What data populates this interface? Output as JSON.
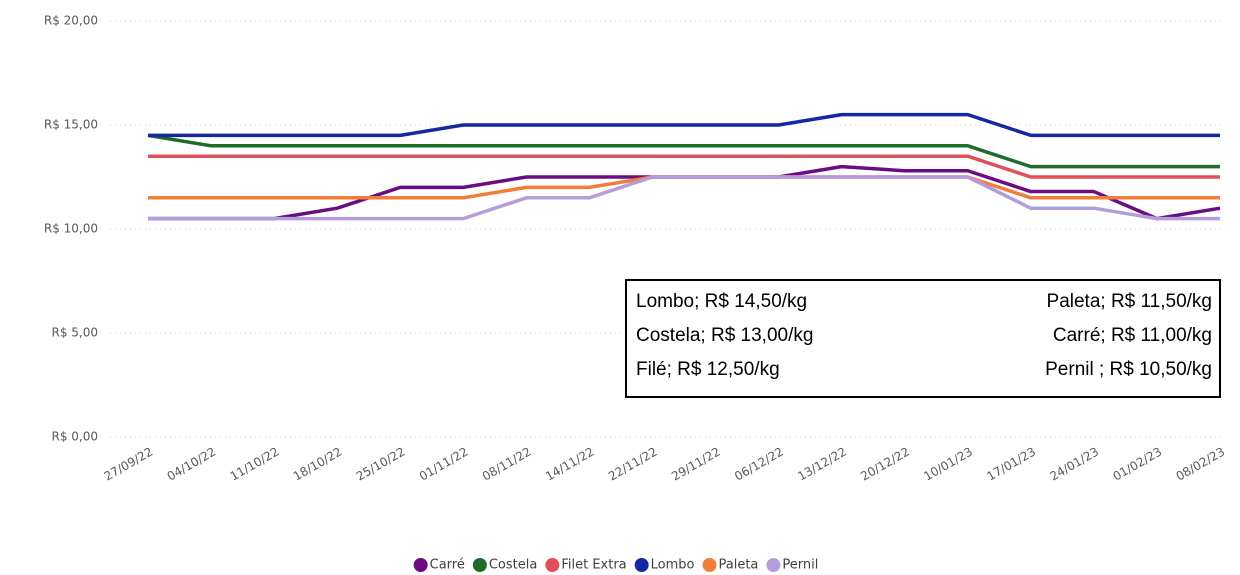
{
  "chart_data": {
    "type": "line",
    "categories": [
      "27/09/22",
      "04/10/22",
      "11/10/22",
      "18/10/22",
      "25/10/22",
      "01/11/22",
      "08/11/22",
      "14/11/22",
      "22/11/22",
      "29/11/22",
      "06/12/22",
      "13/12/22",
      "20/12/22",
      "10/01/23",
      "17/01/23",
      "24/01/23",
      "01/02/23",
      "08/02/23"
    ],
    "series": [
      {
        "name": "Carré",
        "color": "#6a0d83",
        "values": [
          10.5,
          10.5,
          10.5,
          11,
          12,
          12,
          12.5,
          12.5,
          12.5,
          12.5,
          12.5,
          13,
          12.8,
          12.8,
          11.8,
          11.8,
          10.5,
          11
        ]
      },
      {
        "name": "Costela",
        "color": "#1e6b2a",
        "values": [
          14.5,
          14,
          14,
          14,
          14,
          14,
          14,
          14,
          14,
          14,
          14,
          14,
          14,
          14,
          13,
          13,
          13,
          13
        ]
      },
      {
        "name": "Filet Extra",
        "color": "#e0505a",
        "values": [
          13.5,
          13.5,
          13.5,
          13.5,
          13.5,
          13.5,
          13.5,
          13.5,
          13.5,
          13.5,
          13.5,
          13.5,
          13.5,
          13.5,
          12.5,
          12.5,
          12.5,
          12.5
        ]
      },
      {
        "name": "Lombo",
        "color": "#1428a0",
        "values": [
          14.5,
          14.5,
          14.5,
          14.5,
          14.5,
          15,
          15,
          15,
          15,
          15,
          15,
          15.5,
          15.5,
          15.5,
          14.5,
          14.5,
          14.5,
          14.5
        ]
      },
      {
        "name": "Paleta",
        "color": "#f07d3a",
        "values": [
          11.5,
          11.5,
          11.5,
          11.5,
          11.5,
          11.5,
          12,
          12,
          12.5,
          12.5,
          12.5,
          12.5,
          12.5,
          12.5,
          11.5,
          11.5,
          11.5,
          11.5
        ]
      },
      {
        "name": "Pernil",
        "color": "#b39ddb",
        "values": [
          10.5,
          10.5,
          10.5,
          10.5,
          10.5,
          10.5,
          11.5,
          11.5,
          12.5,
          12.5,
          12.5,
          12.5,
          12.5,
          12.5,
          11,
          11,
          10.5,
          10.5
        ]
      }
    ],
    "ylim": [
      0,
      20
    ],
    "yticks": [
      {
        "value": 0,
        "label": "R$ 0,00"
      },
      {
        "value": 5,
        "label": "R$ 5,00"
      },
      {
        "value": 10,
        "label": "R$ 10,00"
      },
      {
        "value": 15,
        "label": "R$ 15,00"
      },
      {
        "value": 20,
        "label": "R$ 20,00"
      }
    ],
    "grid": true,
    "legend": "bottom",
    "annotations": {
      "left": [
        "Lombo; R$ 14,50/kg",
        "Costela; R$ 13,00/kg",
        "Filé; R$ 12,50/kg"
      ],
      "right": [
        "Paleta; R$ 11,50/kg",
        "Carré; R$ 11,00/kg",
        "Pernil ; R$ 10,50/kg"
      ]
    }
  }
}
